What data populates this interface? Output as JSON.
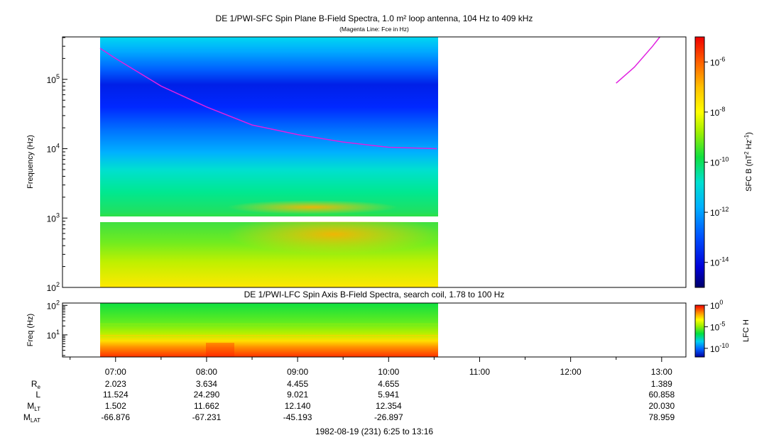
{
  "figure": {
    "title": "DE 1/PWI-SFC  Spin Plane B-Field Spectra, 1.0 m² loop antenna, 104 Hz to 409 kHz",
    "subtitle": "(Magenta Line: Fce in Hz)",
    "footer": "1982-08-19 (231) 6:25 to 13:16"
  },
  "chart_data": [
    {
      "type": "heatmap",
      "panel": "SFC",
      "title": "DE 1/PWI-SFC  Spin Plane B-Field Spectra, 1.0 m² loop antenna, 104 Hz to 409 kHz",
      "subtitle": "(Magenta Line: Fce in Hz)",
      "ylabel": "Frequency (Hz)",
      "yscale": "log",
      "ylim": [
        100,
        409000
      ],
      "xlim_hours": [
        6.4167,
        13.2667
      ],
      "y_ticks": [
        {
          "value": 100,
          "base": "10",
          "exp": "2"
        },
        {
          "value": 1000,
          "base": "10",
          "exp": "3"
        },
        {
          "value": 10000,
          "base": "10",
          "exp": "4"
        },
        {
          "value": 100000,
          "base": "10",
          "exp": "5"
        }
      ],
      "data_time_range_hours": [
        6.83,
        10.53
      ],
      "data_gap_hz": [
        900,
        1000
      ],
      "colorbar": {
        "label_main": "SFC B (nT",
        "label_exp1": "2",
        "label_mid": " Hz",
        "label_exp2": "-1",
        "label_end": ")",
        "scale": "log",
        "range": [
          1e-15,
          1e-05
        ],
        "ticks": [
          {
            "value": 1e-06,
            "base": "10",
            "exp": "-6"
          },
          {
            "value": 1e-08,
            "base": "10",
            "exp": "-8"
          },
          {
            "value": 1e-10,
            "base": "10",
            "exp": "-10"
          },
          {
            "value": 1e-12,
            "base": "10",
            "exp": "-12"
          },
          {
            "value": 1e-14,
            "base": "10",
            "exp": "-14"
          }
        ]
      },
      "fce_line": {
        "color": "#e020e0",
        "segments": [
          [
            [
              6.83,
              280000
            ],
            [
              7.0,
              200000
            ],
            [
              7.5,
              80000
            ],
            [
              8.0,
              40000
            ],
            [
              8.5,
              22000
            ],
            [
              9.0,
              16000
            ],
            [
              9.5,
              12500
            ],
            [
              10.0,
              10500
            ],
            [
              10.53,
              10000
            ]
          ],
          [
            [
              12.5,
              88000
            ],
            [
              12.7,
              150000
            ],
            [
              12.9,
              300000
            ],
            [
              12.98,
              409000
            ]
          ]
        ]
      }
    },
    {
      "type": "heatmap",
      "panel": "LFC",
      "title": "DE 1/PWI-LFC  Spin Axis B-Field Spectra, search coil, 1.78 to 100 Hz",
      "ylabel": "Freq (Hz)",
      "yscale": "log",
      "ylim": [
        1.78,
        120
      ],
      "y_ticks": [
        {
          "value": 10,
          "base": "10",
          "exp": "1"
        },
        {
          "value": 100,
          "base": "10",
          "exp": "2"
        }
      ],
      "data_time_range_hours": [
        6.83,
        10.53
      ],
      "colorbar": {
        "label": "LFC H",
        "scale": "log",
        "range": [
          1e-12,
          1
        ],
        "ticks": [
          {
            "value": 1,
            "base": "10",
            "exp": "0"
          },
          {
            "value": 1e-05,
            "base": "10",
            "exp": "-5"
          },
          {
            "value": 1e-10,
            "base": "10",
            "exp": "-10"
          }
        ]
      }
    }
  ],
  "time_axis": {
    "ticks": [
      {
        "hour": 7,
        "label": "07:00"
      },
      {
        "hour": 8,
        "label": "08:00"
      },
      {
        "hour": 9,
        "label": "09:00"
      },
      {
        "hour": 10,
        "label": "10:00"
      },
      {
        "hour": 11,
        "label": "11:00"
      },
      {
        "hour": 12,
        "label": "12:00"
      },
      {
        "hour": 13,
        "label": "13:00"
      }
    ],
    "minor_step_hours": 0.5
  },
  "ephemeris": {
    "rows": [
      {
        "name": "R",
        "sub": "e",
        "values": [
          "2.023",
          "3.634",
          "4.455",
          "4.655",
          "",
          "",
          "1.389"
        ]
      },
      {
        "name": "L",
        "sub": "",
        "values": [
          "11.524",
          "24.290",
          "9.021",
          "5.941",
          "",
          "",
          "60.858"
        ]
      },
      {
        "name": "M",
        "sub": "LT",
        "values": [
          "1.502",
          "11.662",
          "12.140",
          "12.354",
          "",
          "",
          "20.030"
        ]
      },
      {
        "name": "M",
        "sub": "LAT",
        "values": [
          "-66.876",
          "-67.231",
          "-45.193",
          "-26.897",
          "",
          "",
          "78.959"
        ]
      }
    ]
  },
  "colors": {
    "fce_line": "#e020e0",
    "frame": "#000000",
    "background": "#ffffff"
  }
}
